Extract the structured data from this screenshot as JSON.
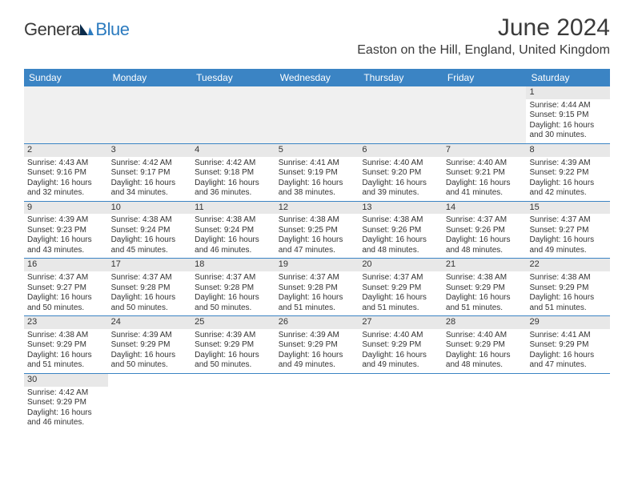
{
  "logo": {
    "word1": "Genera",
    "word2": "Blue"
  },
  "title": "June 2024",
  "location": "Easton on the Hill, England, United Kingdom",
  "colors": {
    "header_bg": "#3b84c4",
    "header_text": "#ffffff",
    "daynum_bg": "#e8e8e8",
    "empty_bg": "#f0f0f0",
    "row_border": "#3b84c4",
    "text": "#333333",
    "logo_gray": "#3a3a3a",
    "logo_blue": "#2c7bbf"
  },
  "fonts": {
    "title_size": 30,
    "location_size": 16,
    "dayheader_size": 12,
    "daynum_size": 11,
    "detail_size": 10
  },
  "day_headers": [
    "Sunday",
    "Monday",
    "Tuesday",
    "Wednesday",
    "Thursday",
    "Friday",
    "Saturday"
  ],
  "weeks": [
    [
      null,
      null,
      null,
      null,
      null,
      null,
      {
        "n": "1",
        "sunrise": "Sunrise: 4:44 AM",
        "sunset": "Sunset: 9:15 PM",
        "daylight": "Daylight: 16 hours and 30 minutes."
      }
    ],
    [
      {
        "n": "2",
        "sunrise": "Sunrise: 4:43 AM",
        "sunset": "Sunset: 9:16 PM",
        "daylight": "Daylight: 16 hours and 32 minutes."
      },
      {
        "n": "3",
        "sunrise": "Sunrise: 4:42 AM",
        "sunset": "Sunset: 9:17 PM",
        "daylight": "Daylight: 16 hours and 34 minutes."
      },
      {
        "n": "4",
        "sunrise": "Sunrise: 4:42 AM",
        "sunset": "Sunset: 9:18 PM",
        "daylight": "Daylight: 16 hours and 36 minutes."
      },
      {
        "n": "5",
        "sunrise": "Sunrise: 4:41 AM",
        "sunset": "Sunset: 9:19 PM",
        "daylight": "Daylight: 16 hours and 38 minutes."
      },
      {
        "n": "6",
        "sunrise": "Sunrise: 4:40 AM",
        "sunset": "Sunset: 9:20 PM",
        "daylight": "Daylight: 16 hours and 39 minutes."
      },
      {
        "n": "7",
        "sunrise": "Sunrise: 4:40 AM",
        "sunset": "Sunset: 9:21 PM",
        "daylight": "Daylight: 16 hours and 41 minutes."
      },
      {
        "n": "8",
        "sunrise": "Sunrise: 4:39 AM",
        "sunset": "Sunset: 9:22 PM",
        "daylight": "Daylight: 16 hours and 42 minutes."
      }
    ],
    [
      {
        "n": "9",
        "sunrise": "Sunrise: 4:39 AM",
        "sunset": "Sunset: 9:23 PM",
        "daylight": "Daylight: 16 hours and 43 minutes."
      },
      {
        "n": "10",
        "sunrise": "Sunrise: 4:38 AM",
        "sunset": "Sunset: 9:24 PM",
        "daylight": "Daylight: 16 hours and 45 minutes."
      },
      {
        "n": "11",
        "sunrise": "Sunrise: 4:38 AM",
        "sunset": "Sunset: 9:24 PM",
        "daylight": "Daylight: 16 hours and 46 minutes."
      },
      {
        "n": "12",
        "sunrise": "Sunrise: 4:38 AM",
        "sunset": "Sunset: 9:25 PM",
        "daylight": "Daylight: 16 hours and 47 minutes."
      },
      {
        "n": "13",
        "sunrise": "Sunrise: 4:38 AM",
        "sunset": "Sunset: 9:26 PM",
        "daylight": "Daylight: 16 hours and 48 minutes."
      },
      {
        "n": "14",
        "sunrise": "Sunrise: 4:37 AM",
        "sunset": "Sunset: 9:26 PM",
        "daylight": "Daylight: 16 hours and 48 minutes."
      },
      {
        "n": "15",
        "sunrise": "Sunrise: 4:37 AM",
        "sunset": "Sunset: 9:27 PM",
        "daylight": "Daylight: 16 hours and 49 minutes."
      }
    ],
    [
      {
        "n": "16",
        "sunrise": "Sunrise: 4:37 AM",
        "sunset": "Sunset: 9:27 PM",
        "daylight": "Daylight: 16 hours and 50 minutes."
      },
      {
        "n": "17",
        "sunrise": "Sunrise: 4:37 AM",
        "sunset": "Sunset: 9:28 PM",
        "daylight": "Daylight: 16 hours and 50 minutes."
      },
      {
        "n": "18",
        "sunrise": "Sunrise: 4:37 AM",
        "sunset": "Sunset: 9:28 PM",
        "daylight": "Daylight: 16 hours and 50 minutes."
      },
      {
        "n": "19",
        "sunrise": "Sunrise: 4:37 AM",
        "sunset": "Sunset: 9:28 PM",
        "daylight": "Daylight: 16 hours and 51 minutes."
      },
      {
        "n": "20",
        "sunrise": "Sunrise: 4:37 AM",
        "sunset": "Sunset: 9:29 PM",
        "daylight": "Daylight: 16 hours and 51 minutes."
      },
      {
        "n": "21",
        "sunrise": "Sunrise: 4:38 AM",
        "sunset": "Sunset: 9:29 PM",
        "daylight": "Daylight: 16 hours and 51 minutes."
      },
      {
        "n": "22",
        "sunrise": "Sunrise: 4:38 AM",
        "sunset": "Sunset: 9:29 PM",
        "daylight": "Daylight: 16 hours and 51 minutes."
      }
    ],
    [
      {
        "n": "23",
        "sunrise": "Sunrise: 4:38 AM",
        "sunset": "Sunset: 9:29 PM",
        "daylight": "Daylight: 16 hours and 51 minutes."
      },
      {
        "n": "24",
        "sunrise": "Sunrise: 4:39 AM",
        "sunset": "Sunset: 9:29 PM",
        "daylight": "Daylight: 16 hours and 50 minutes."
      },
      {
        "n": "25",
        "sunrise": "Sunrise: 4:39 AM",
        "sunset": "Sunset: 9:29 PM",
        "daylight": "Daylight: 16 hours and 50 minutes."
      },
      {
        "n": "26",
        "sunrise": "Sunrise: 4:39 AM",
        "sunset": "Sunset: 9:29 PM",
        "daylight": "Daylight: 16 hours and 49 minutes."
      },
      {
        "n": "27",
        "sunrise": "Sunrise: 4:40 AM",
        "sunset": "Sunset: 9:29 PM",
        "daylight": "Daylight: 16 hours and 49 minutes."
      },
      {
        "n": "28",
        "sunrise": "Sunrise: 4:40 AM",
        "sunset": "Sunset: 9:29 PM",
        "daylight": "Daylight: 16 hours and 48 minutes."
      },
      {
        "n": "29",
        "sunrise": "Sunrise: 4:41 AM",
        "sunset": "Sunset: 9:29 PM",
        "daylight": "Daylight: 16 hours and 47 minutes."
      }
    ],
    [
      {
        "n": "30",
        "sunrise": "Sunrise: 4:42 AM",
        "sunset": "Sunset: 9:29 PM",
        "daylight": "Daylight: 16 hours and 46 minutes."
      },
      null,
      null,
      null,
      null,
      null,
      null
    ]
  ]
}
